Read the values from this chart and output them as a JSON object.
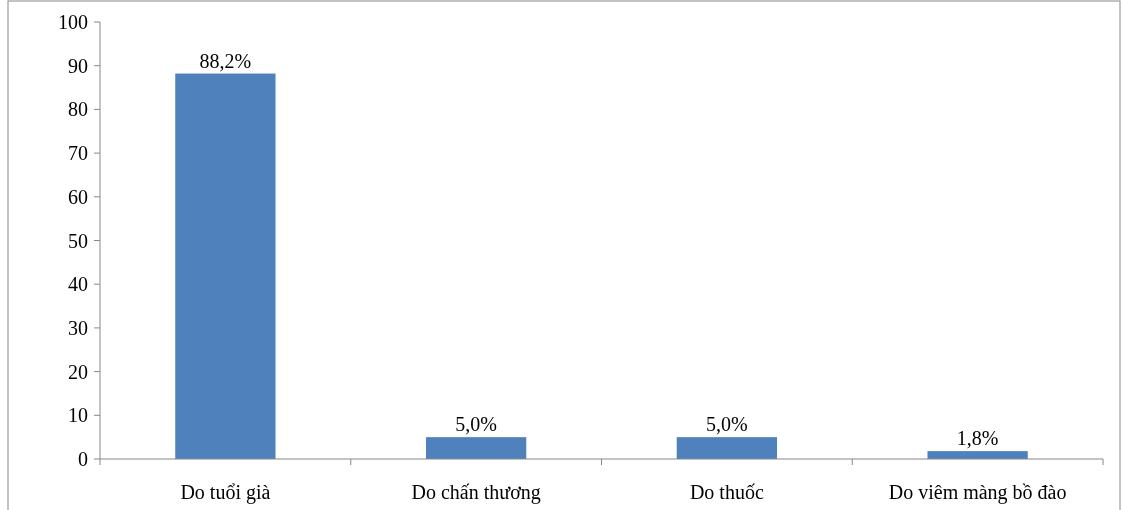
{
  "chart_data": {
    "type": "bar",
    "categories": [
      "Do tuổi già",
      "Do chấn thương",
      "Do thuốc",
      "Do viêm màng bồ đào"
    ],
    "values": [
      88.2,
      5.0,
      5.0,
      1.8
    ],
    "value_labels": [
      "88,2%",
      "5,0%",
      "5,0%",
      "1,8%"
    ],
    "color": "#4f81bd",
    "ylim": [
      0,
      100
    ],
    "yticks": [
      0,
      10,
      20,
      30,
      40,
      50,
      60,
      70,
      80,
      90,
      100
    ],
    "grid": false
  }
}
